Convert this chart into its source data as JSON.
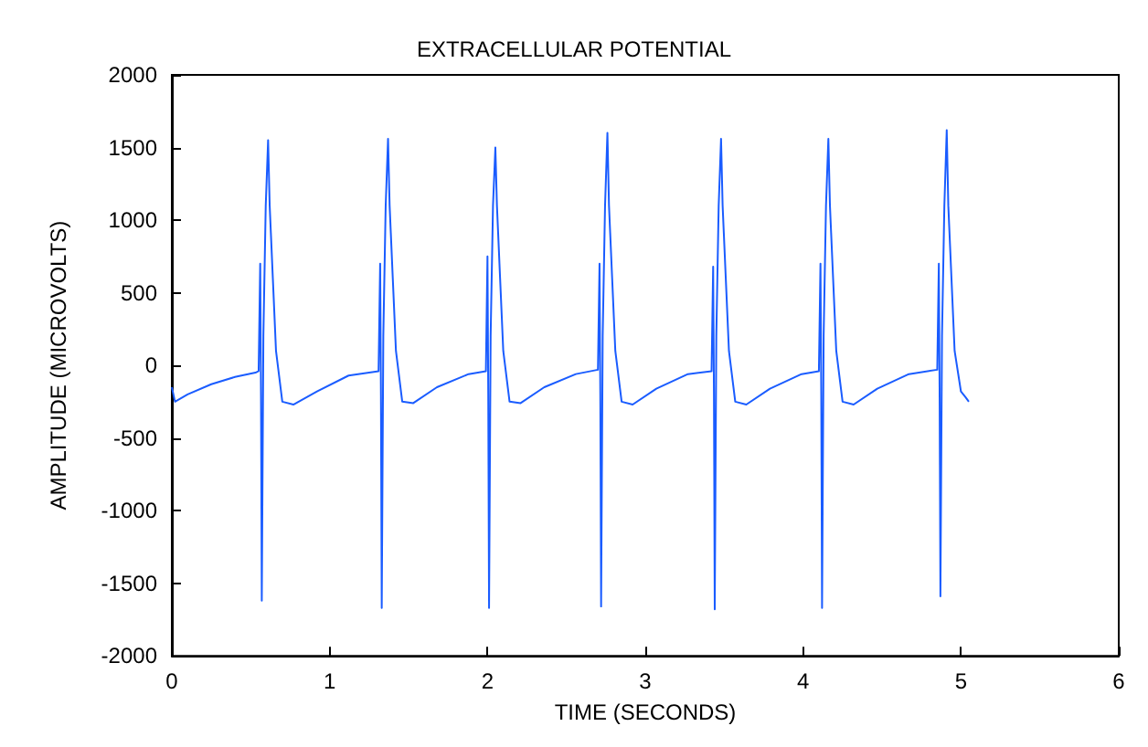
{
  "chart_data": {
    "type": "line",
    "title": "EXTRACELLULAR POTENTIAL",
    "xlabel": "TIME (SECONDS)",
    "ylabel": "AMPLITUDE (MICROVOLTS)",
    "x": [
      0,
      0.02,
      0.1,
      0.25,
      0.4,
      0.53,
      0.55,
      0.56,
      0.565,
      0.57,
      0.58,
      0.595,
      0.61,
      0.62,
      0.64,
      0.66,
      0.7,
      0.77,
      0.92,
      1.12,
      1.31,
      1.32,
      1.325,
      1.33,
      1.34,
      1.355,
      1.37,
      1.38,
      1.4,
      1.42,
      1.46,
      1.53,
      1.68,
      1.88,
      1.99,
      2,
      2.005,
      2.01,
      2.02,
      2.035,
      2.05,
      2.06,
      2.08,
      2.1,
      2.14,
      2.21,
      2.36,
      2.56,
      2.7,
      2.71,
      2.715,
      2.72,
      2.73,
      2.745,
      2.76,
      2.77,
      2.79,
      2.81,
      2.85,
      2.92,
      3.07,
      3.27,
      3.42,
      3.43,
      3.435,
      3.44,
      3.45,
      3.465,
      3.48,
      3.49,
      3.51,
      3.53,
      3.57,
      3.64,
      3.79,
      3.99,
      4.1,
      4.11,
      4.115,
      4.12,
      4.13,
      4.145,
      4.16,
      4.17,
      4.19,
      4.21,
      4.25,
      4.32,
      4.47,
      4.67,
      4.85,
      4.86,
      4.865,
      4.87,
      4.88,
      4.895,
      4.91,
      4.92,
      4.94,
      4.96,
      5,
      5.03,
      5.05
    ],
    "series": [
      {
        "color": "#1a5cff",
        "values": [
          -150,
          -250,
          -200,
          -130,
          -80,
          -50,
          -40,
          700,
          -200,
          -1620,
          200,
          1100,
          1550,
          1100,
          600,
          100,
          -250,
          -270,
          -180,
          -70,
          -40,
          700,
          -200,
          -1670,
          200,
          1100,
          1560,
          1100,
          600,
          100,
          -250,
          -260,
          -150,
          -60,
          -40,
          750,
          -200,
          -1670,
          200,
          1100,
          1500,
          1100,
          600,
          100,
          -250,
          -260,
          -150,
          -60,
          -30,
          700,
          -200,
          -1660,
          200,
          1100,
          1600,
          1100,
          600,
          100,
          -250,
          -270,
          -160,
          -60,
          -40,
          680,
          -200,
          -1680,
          200,
          1100,
          1560,
          1100,
          600,
          100,
          -250,
          -270,
          -160,
          -60,
          -40,
          700,
          -200,
          -1670,
          200,
          1100,
          1560,
          1100,
          600,
          100,
          -250,
          -270,
          -160,
          -60,
          -30,
          700,
          -200,
          -1590,
          200,
          1100,
          1620,
          1100,
          600,
          100,
          -180,
          -220,
          -250
        ]
      }
    ],
    "xlim": [
      0,
      6
    ],
    "xticks": [
      0,
      1,
      2,
      3,
      4,
      5,
      6
    ],
    "ylim": [
      -2000,
      2000
    ],
    "yticks": [
      -2000,
      -1500,
      -1000,
      -500,
      0,
      500,
      1000,
      1500,
      2000
    ],
    "grid": false,
    "marker": "none",
    "line_style": "solid"
  }
}
